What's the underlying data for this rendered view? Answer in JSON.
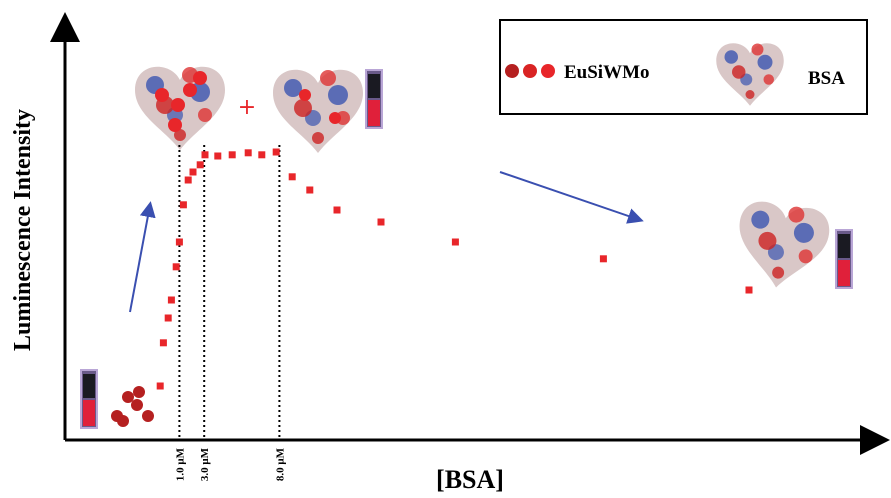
{
  "chart_data": {
    "type": "scatter",
    "y_label": "Luminescence Intensity",
    "x_label": "[BSA]",
    "xlim": [
      0,
      100
    ],
    "ylim": [
      0,
      105
    ],
    "color": "#e8262a",
    "x": [
      11.9,
      12.3,
      12.9,
      13.3,
      13.9,
      14.3,
      14.8,
      15.4,
      16.0,
      16.9,
      17.5,
      19.1,
      20.9,
      22.9,
      24.6,
      26.4,
      28.4,
      30.6,
      34.0,
      39.5,
      48.8,
      67.3,
      85.5
    ],
    "values": [
      13.5,
      24.3,
      30.5,
      35.0,
      43.3,
      49.5,
      58.8,
      65.0,
      67.0,
      68.8,
      71.3,
      71.0,
      71.3,
      71.8,
      71.3,
      72.0,
      65.8,
      62.5,
      57.5,
      54.5,
      49.5,
      45.3,
      37.5
    ],
    "reference_lines": [
      {
        "value": 14.3,
        "label": "1.0 μM"
      },
      {
        "value": 17.4,
        "label": "3.0 μM"
      },
      {
        "value": 26.8,
        "label": "8.0 μM"
      }
    ],
    "legend": [
      "EuSiWMo",
      "BSA"
    ]
  }
}
